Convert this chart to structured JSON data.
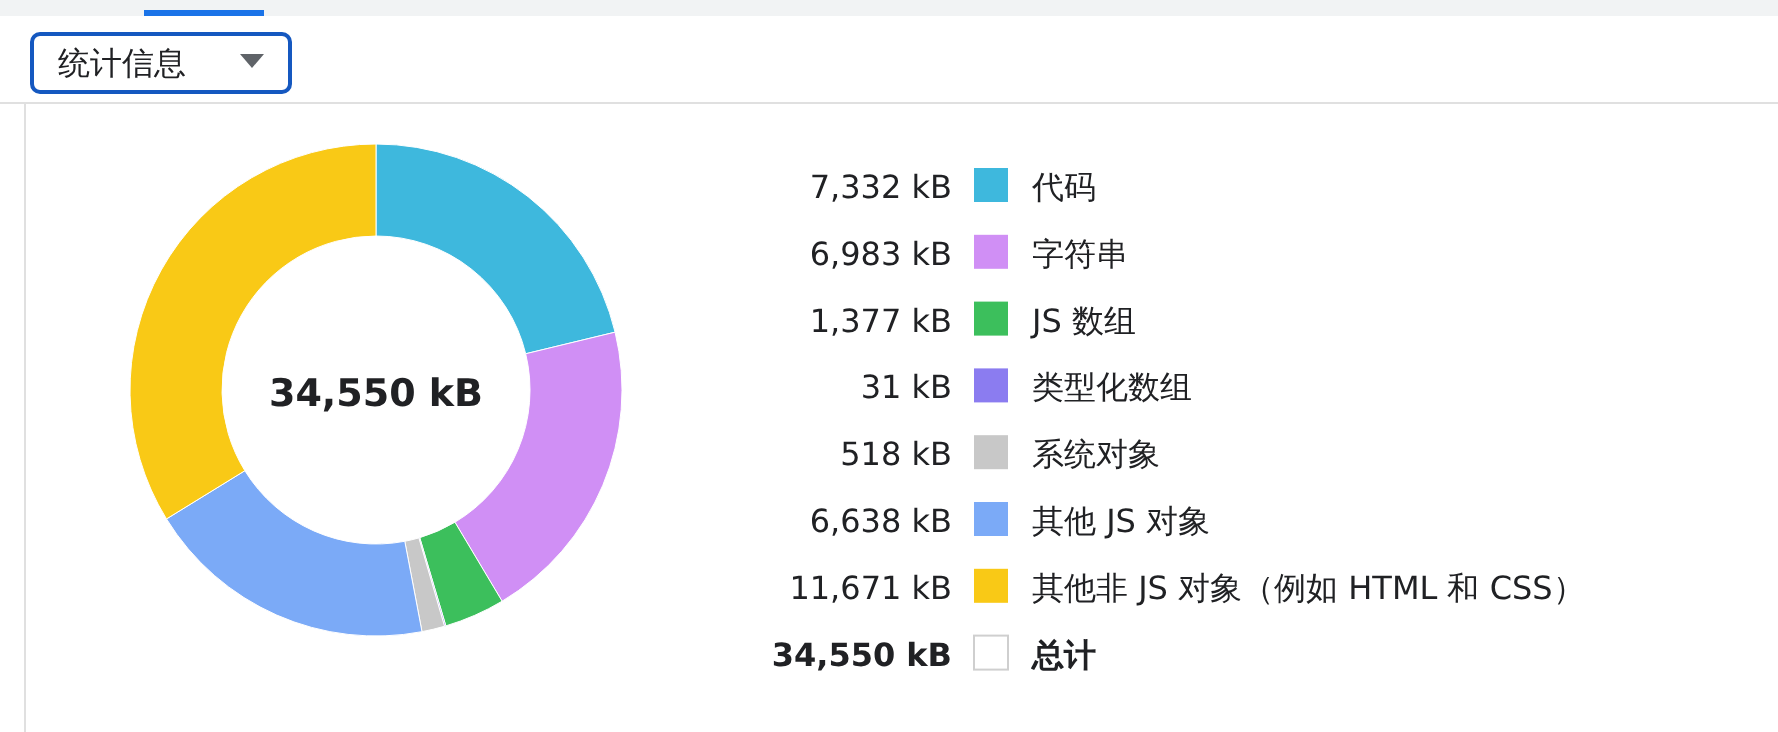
{
  "chart_data": {
    "type": "donut",
    "title": "统计信息",
    "categories": [
      "代码",
      "字符串",
      "JS 数组",
      "类型化数组",
      "系统对象",
      "其他 JS 对象",
      "其他非 JS 对象（例如 HTML 和 CSS）"
    ],
    "values": [
      7332,
      6983,
      1377,
      31,
      518,
      6638,
      11671
    ],
    "value_labels": [
      "7,332 kB",
      "6,983 kB",
      "1,377 kB",
      "31 kB",
      "518 kB",
      "6,638 kB",
      "11,671 kB"
    ],
    "colors": [
      "#3eb8dd",
      "#d08ff5",
      "#3cbf5c",
      "#8b7cf0",
      "#c8c8c8",
      "#7baaf7",
      "#f9c916"
    ],
    "annotations": [
      "34,550 kB",
      "34,550 kB",
      "总计"
    ],
    "legend": "right"
  }
}
